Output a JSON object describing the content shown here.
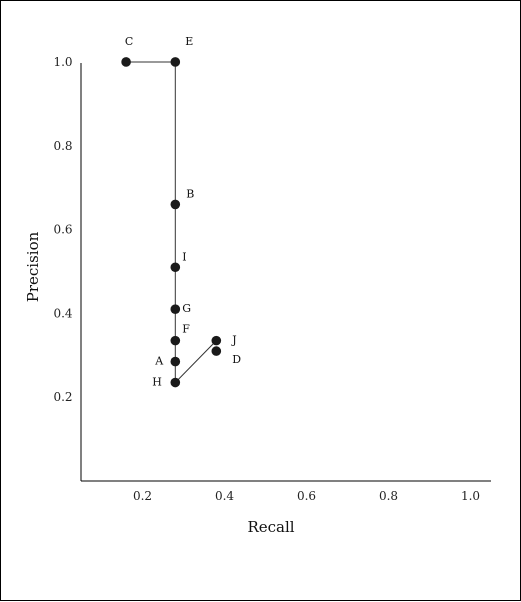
{
  "chart_data": {
    "type": "scatter",
    "title": "",
    "xlabel": "Recall",
    "ylabel": "Precision",
    "xlim": [
      0.05,
      1.05
    ],
    "ylim": [
      0.0,
      1.05
    ],
    "x_ticks": [
      0.2,
      0.4,
      0.6,
      0.8,
      1.0
    ],
    "x_tick_labels": [
      "0.2",
      "0.4",
      "0.6",
      "0.8",
      "1.0"
    ],
    "y_ticks": [
      0.2,
      0.4,
      0.6,
      0.8,
      1.0
    ],
    "y_tick_labels": [
      "0.2",
      "0.4",
      "0.6",
      "0.8",
      "1.0"
    ],
    "grid": false,
    "points": [
      {
        "label": "C",
        "x": 0.16,
        "y": 1.0
      },
      {
        "label": "E",
        "x": 0.28,
        "y": 1.0
      },
      {
        "label": "B",
        "x": 0.28,
        "y": 0.66
      },
      {
        "label": "I",
        "x": 0.28,
        "y": 0.51
      },
      {
        "label": "G",
        "x": 0.28,
        "y": 0.41
      },
      {
        "label": "F",
        "x": 0.28,
        "y": 0.335
      },
      {
        "label": "A",
        "x": 0.28,
        "y": 0.285
      },
      {
        "label": "H",
        "x": 0.28,
        "y": 0.235
      },
      {
        "label": "J",
        "x": 0.38,
        "y": 0.335
      },
      {
        "label": "D",
        "x": 0.38,
        "y": 0.31
      }
    ],
    "connections": [
      [
        "C",
        "E"
      ],
      [
        "E",
        "B"
      ],
      [
        "B",
        "I"
      ],
      [
        "I",
        "G"
      ],
      [
        "G",
        "F"
      ],
      [
        "F",
        "A"
      ],
      [
        "A",
        "H"
      ],
      [
        "H",
        "J"
      ]
    ]
  }
}
